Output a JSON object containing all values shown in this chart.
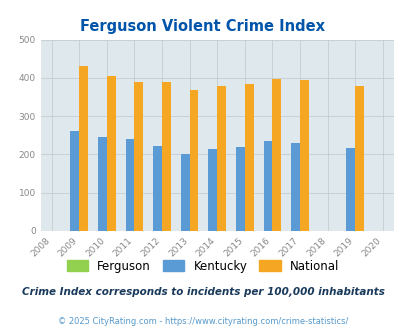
{
  "title": "Ferguson Violent Crime Index",
  "years": [
    2008,
    2009,
    2010,
    2011,
    2012,
    2013,
    2014,
    2015,
    2016,
    2017,
    2018,
    2019,
    2020
  ],
  "kentucky": [
    0,
    260,
    245,
    240,
    223,
    202,
    215,
    220,
    235,
    229,
    0,
    216,
    0
  ],
  "national": [
    0,
    430,
    405,
    388,
    388,
    368,
    378,
    384,
    397,
    394,
    0,
    380,
    0
  ],
  "ferguson": [
    0,
    0,
    0,
    0,
    0,
    0,
    0,
    0,
    0,
    0,
    0,
    0,
    0
  ],
  "kentucky_color": "#5b9bd5",
  "national_color": "#f5a623",
  "ferguson_color": "#92d050",
  "bg_color": "#dfe8ec",
  "title_color": "#0055aa",
  "ylim": [
    0,
    500
  ],
  "yticks": [
    0,
    100,
    200,
    300,
    400,
    500
  ],
  "subtitle": "Crime Index corresponds to incidents per 100,000 inhabitants",
  "footer": "© 2025 CityRating.com - https://www.cityrating.com/crime-statistics/",
  "subtitle_color": "#1a3a5c",
  "footer_color": "#5599cc",
  "grid_color": "#c0c8cc",
  "tick_color": "#888888",
  "bar_width": 0.32
}
